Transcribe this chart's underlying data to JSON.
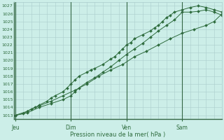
{
  "background_color": "#cceee8",
  "plot_bg_color": "#cceee8",
  "grid_color": "#aacccc",
  "line_color": "#2d6b3c",
  "vline_color": "#336644",
  "ylim": [
    1012.5,
    1027.5
  ],
  "ytick_min": 1013,
  "ytick_max": 1027,
  "xlabel": "Pression niveau de la mer( hPa )",
  "day_labels": [
    "Jeu",
    "Dim",
    "Ven",
    "Sam"
  ],
  "day_positions": [
    0,
    84,
    168,
    252
  ],
  "xlim": [
    0,
    312
  ],
  "series1_x": [
    0,
    12,
    18,
    24,
    30,
    36,
    48,
    54,
    60,
    72,
    78,
    84,
    90,
    96,
    108,
    114,
    120,
    132,
    144,
    150,
    156,
    162,
    168,
    174,
    180,
    192,
    204,
    210,
    216,
    222,
    228,
    234,
    240,
    252,
    264,
    276,
    288,
    300,
    312
  ],
  "series1_y": [
    1013.0,
    1013.2,
    1013.5,
    1013.8,
    1014.0,
    1014.3,
    1014.8,
    1015.2,
    1015.5,
    1016.0,
    1016.5,
    1017.0,
    1017.5,
    1018.0,
    1018.5,
    1018.8,
    1019.0,
    1019.5,
    1020.2,
    1020.5,
    1021.0,
    1021.5,
    1022.0,
    1022.3,
    1022.8,
    1023.3,
    1023.8,
    1024.2,
    1024.5,
    1025.0,
    1025.5,
    1025.8,
    1026.2,
    1026.5,
    1026.8,
    1027.0,
    1026.8,
    1026.5,
    1026.2
  ],
  "series2_x": [
    0,
    18,
    36,
    54,
    72,
    90,
    108,
    126,
    144,
    162,
    180,
    198,
    216,
    234,
    252,
    270,
    288,
    300,
    312
  ],
  "series2_y": [
    1013.0,
    1013.5,
    1014.2,
    1014.8,
    1015.5,
    1016.2,
    1017.0,
    1018.0,
    1018.8,
    1019.5,
    1020.5,
    1021.2,
    1022.0,
    1022.8,
    1023.5,
    1024.0,
    1024.5,
    1025.0,
    1026.0
  ],
  "series3_x": [
    0,
    18,
    36,
    54,
    72,
    84,
    90,
    96,
    108,
    120,
    132,
    144,
    156,
    168,
    180,
    192,
    204,
    216,
    228,
    240,
    252,
    264,
    276,
    288,
    300,
    312
  ],
  "series3_y": [
    1013.0,
    1013.3,
    1014.0,
    1014.5,
    1015.0,
    1015.5,
    1016.0,
    1016.5,
    1017.2,
    1017.8,
    1018.5,
    1019.2,
    1020.0,
    1020.8,
    1021.5,
    1022.2,
    1023.0,
    1023.8,
    1024.5,
    1025.2,
    1026.2,
    1026.2,
    1026.3,
    1026.5,
    1026.2,
    1025.8
  ]
}
